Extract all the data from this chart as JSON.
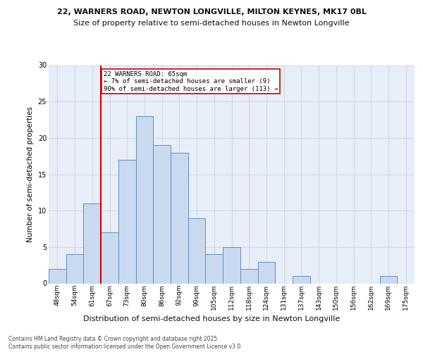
{
  "title_line1": "22, WARNERS ROAD, NEWTON LONGVILLE, MILTON KEYNES, MK17 0BL",
  "title_line2": "Size of property relative to semi-detached houses in Newton Longville",
  "xlabel": "Distribution of semi-detached houses by size in Newton Longville",
  "ylabel": "Number of semi-detached properties",
  "footnote": "Contains HM Land Registry data © Crown copyright and database right 2025.\nContains public sector information licensed under the Open Government Licence v3.0.",
  "bin_labels": [
    "48sqm",
    "54sqm",
    "61sqm",
    "67sqm",
    "73sqm",
    "80sqm",
    "86sqm",
    "92sqm",
    "99sqm",
    "105sqm",
    "112sqm",
    "118sqm",
    "124sqm",
    "131sqm",
    "137sqm",
    "143sqm",
    "150sqm",
    "156sqm",
    "162sqm",
    "169sqm",
    "175sqm"
  ],
  "bar_heights": [
    2,
    4,
    11,
    7,
    17,
    23,
    19,
    18,
    9,
    4,
    5,
    2,
    3,
    0,
    1,
    0,
    0,
    0,
    0,
    1,
    0
  ],
  "bar_color": "#c9d9f0",
  "bar_edgecolor": "#6090c0",
  "grid_color": "#d0d8e8",
  "property_label": "22 WARNERS ROAD: 65sqm",
  "pct_smaller": 7,
  "count_smaller": 9,
  "pct_larger": 90,
  "count_larger": 113,
  "vline_color": "#cc0000",
  "vline_x_index": 2.5,
  "annotation_box_edgecolor": "#cc0000",
  "ylim": [
    0,
    30
  ],
  "yticks": [
    0,
    5,
    10,
    15,
    20,
    25,
    30
  ],
  "background_color": "#e8eef8",
  "fig_background": "#ffffff",
  "title_fontsize": 8,
  "subtitle_fontsize": 8,
  "ylabel_fontsize": 7.5,
  "xlabel_fontsize": 8,
  "tick_fontsize": 6.5,
  "annot_fontsize": 6.5,
  "footnote_fontsize": 5.5
}
